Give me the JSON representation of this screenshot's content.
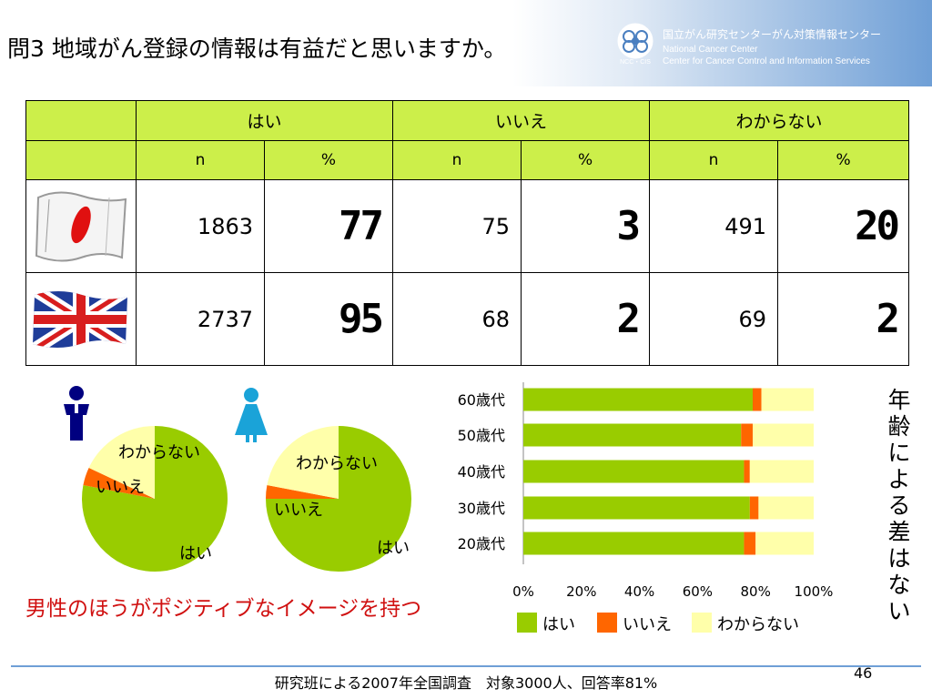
{
  "header": {
    "title": "問3 地域がん登録の情報は有益だと思いますか。",
    "org_ja": "国立がん研究センターがん対策情報センター",
    "org_en1": "National Cancer Center",
    "org_en2": "Center for Cancer Control and Information Services",
    "logo_text": "NCC・CIS"
  },
  "table": {
    "groups": [
      "はい",
      "いいえ",
      "わからない"
    ],
    "subheaders": [
      "n",
      "%",
      "n",
      "%",
      "n",
      "%"
    ],
    "rows": [
      {
        "flag": "japan",
        "cells": [
          "1863",
          "77",
          "75",
          "3",
          "491",
          "20"
        ]
      },
      {
        "flag": "uk",
        "cells": [
          "2737",
          "95",
          "68",
          "2",
          "69",
          "2"
        ]
      }
    ]
  },
  "colors": {
    "yes": "#99cc00",
    "no": "#ff6600",
    "unknown": "#ffffaa",
    "header": "#ccef4a",
    "male_icon": "#000080",
    "female_icon": "#1aa3d8"
  },
  "chart_data": [
    {
      "type": "pie",
      "subject": "male",
      "labels": [
        "はい",
        "いいえ",
        "わからない"
      ],
      "values": [
        78,
        4,
        18
      ]
    },
    {
      "type": "pie",
      "subject": "female",
      "labels": [
        "はい",
        "いいえ",
        "わからない"
      ],
      "values": [
        75,
        3,
        22
      ]
    },
    {
      "type": "bar",
      "orientation": "horizontal",
      "stacked": "percent",
      "categories": [
        "60歳代",
        "50歳代",
        "40歳代",
        "30歳代",
        "20歳代"
      ],
      "series": [
        {
          "name": "はい",
          "values": [
            79,
            75,
            76,
            78,
            76
          ]
        },
        {
          "name": "いいえ",
          "values": [
            3,
            4,
            2,
            3,
            4
          ]
        },
        {
          "name": "わからない",
          "values": [
            18,
            21,
            22,
            19,
            20
          ]
        }
      ],
      "xticks": [
        "0%",
        "20%",
        "40%",
        "60%",
        "80%",
        "100%"
      ],
      "xlim": [
        0,
        100
      ],
      "legend": "bottom"
    }
  ],
  "note": "男性のほうがポジティブなイメージを持つ",
  "side_note": "年齢による差はない",
  "footer": "研究班による2007年全国調査　対象3000人、回答率81%",
  "page_number": "46"
}
